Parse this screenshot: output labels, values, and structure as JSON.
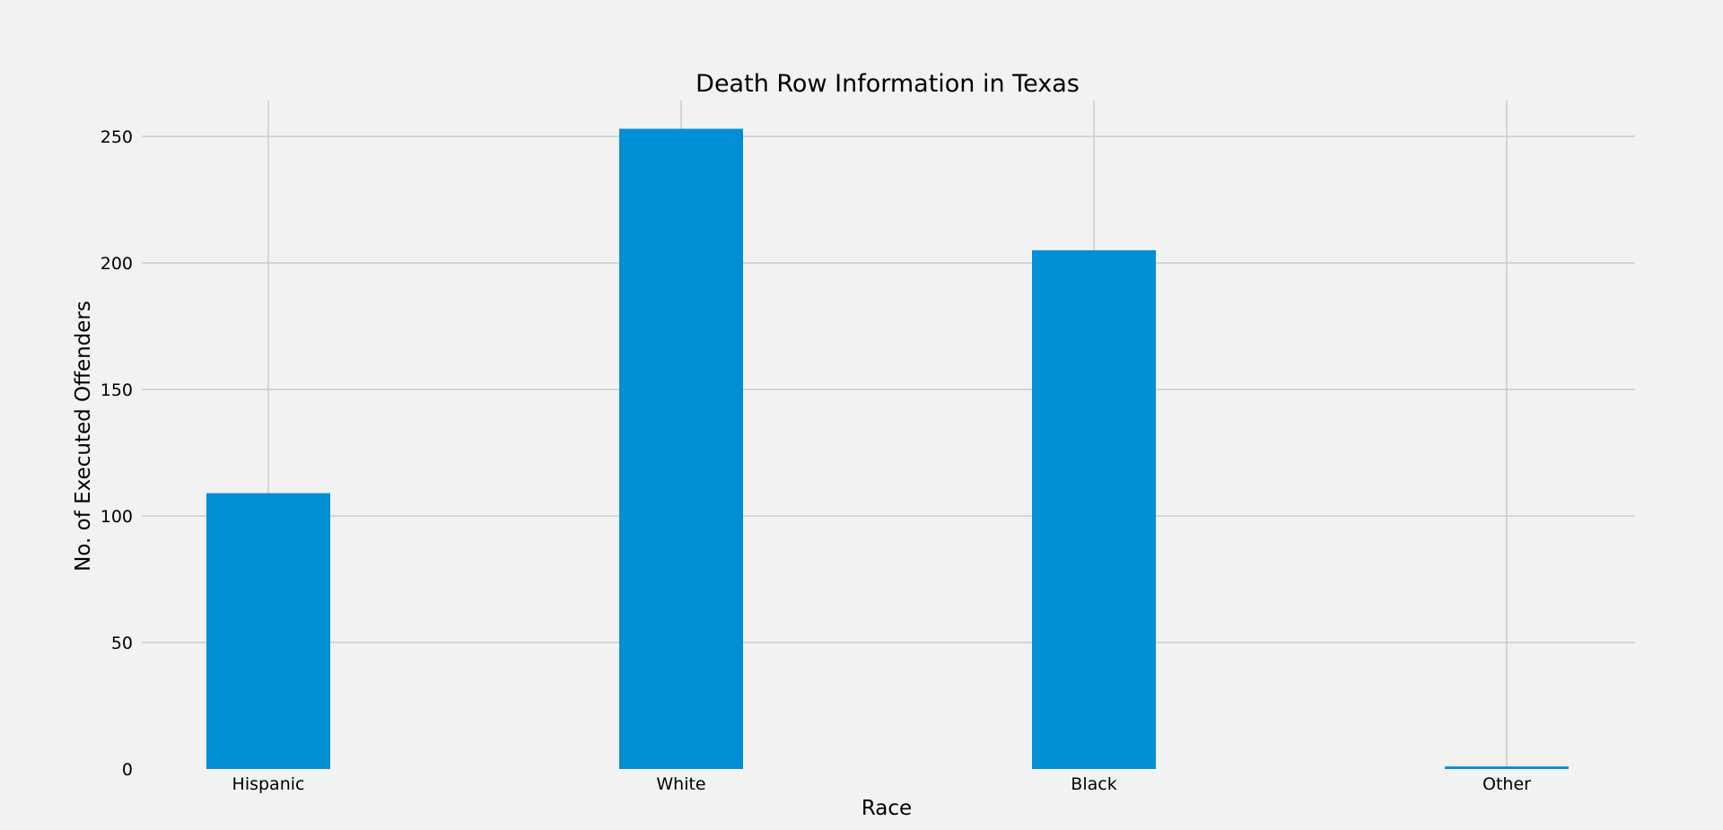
{
  "chart_data": {
    "type": "bar",
    "title": "Death Row Information in Texas",
    "xlabel": "Race",
    "ylabel": "No. of Executed Offenders",
    "categories": [
      "Hispanic",
      "White",
      "Black",
      "Other"
    ],
    "values": [
      109,
      253,
      205,
      1
    ],
    "ylim": [
      0,
      265
    ],
    "yticks": [
      0,
      50,
      100,
      150,
      200,
      250
    ],
    "grid": true,
    "colors": {
      "bar": "#008fd5",
      "background": "#f2f2f2",
      "grid": "#cbcbcb"
    }
  }
}
